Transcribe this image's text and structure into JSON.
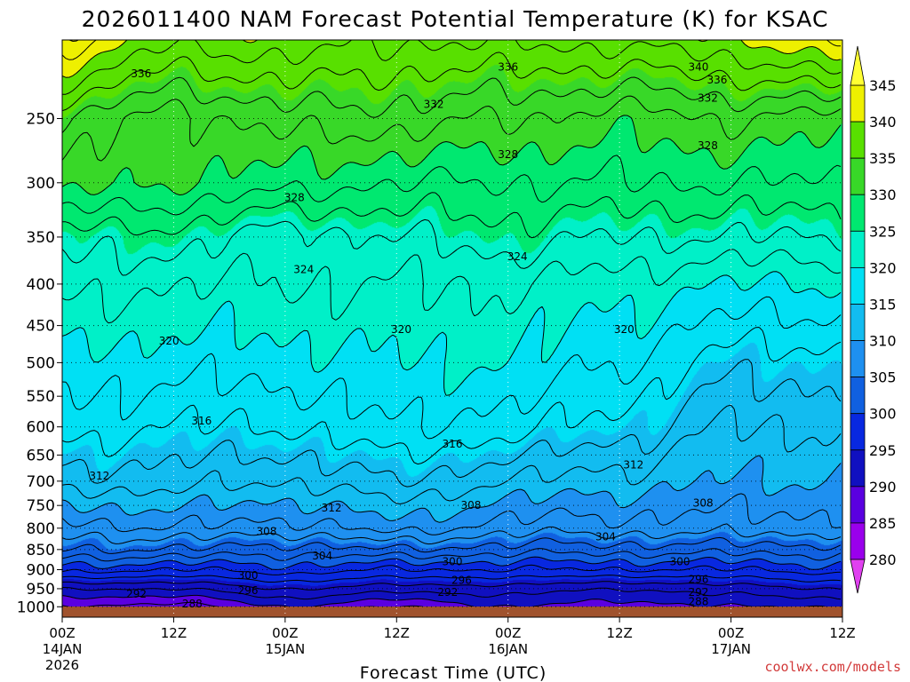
{
  "colors": {
    "levels": [
      {
        "min": 340,
        "color": "#eef000"
      },
      {
        "min": 335,
        "color": "#58e000"
      },
      {
        "min": 330,
        "color": "#38d828"
      },
      {
        "min": 325,
        "color": "#00e870"
      },
      {
        "min": 320,
        "color": "#00f0c8"
      },
      {
        "min": 315,
        "color": "#00e0f4"
      },
      {
        "min": 310,
        "color": "#12bcf0"
      },
      {
        "min": 305,
        "color": "#1e90f0"
      },
      {
        "min": 300,
        "color": "#1060e0"
      },
      {
        "min": 295,
        "color": "#0828e0"
      },
      {
        "min": 290,
        "color": "#1010c0"
      },
      {
        "min": 285,
        "color": "#5a00e0"
      },
      {
        "min": 280,
        "color": "#9a00ec"
      }
    ],
    "ground": "#a0522d",
    "contour": "#000000",
    "credit": "#d23a3a"
  },
  "chart_data": {
    "type": "heatmap",
    "title": "2026011400 NAM Forecast Potential Temperature (K) for KSAC",
    "xlabel": "Forecast Time (UTC)",
    "ylabel": "",
    "x_range_hours": [
      0,
      84
    ],
    "x_ticks": [
      {
        "hour": 0,
        "label": "00Z",
        "sub": "14JAN",
        "sub2": "2026"
      },
      {
        "hour": 12,
        "label": "12Z",
        "sub": "",
        "sub2": ""
      },
      {
        "hour": 24,
        "label": "00Z",
        "sub": "15JAN",
        "sub2": ""
      },
      {
        "hour": 36,
        "label": "12Z",
        "sub": "",
        "sub2": ""
      },
      {
        "hour": 48,
        "label": "00Z",
        "sub": "16JAN",
        "sub2": ""
      },
      {
        "hour": 60,
        "label": "12Z",
        "sub": "",
        "sub2": ""
      },
      {
        "hour": 72,
        "label": "00Z",
        "sub": "17JAN",
        "sub2": ""
      },
      {
        "hour": 84,
        "label": "12Z",
        "sub": "",
        "sub2": ""
      }
    ],
    "y_axis": "pressure (hPa), log scale, decreasing upward",
    "y_range_hpa": [
      1030,
      200
    ],
    "y_ticks": [
      250,
      300,
      350,
      400,
      450,
      500,
      550,
      600,
      650,
      700,
      750,
      800,
      850,
      900,
      950,
      1000
    ],
    "colorbar_ticks": [
      345,
      340,
      335,
      330,
      325,
      320,
      315,
      310,
      305,
      300,
      295,
      290,
      285,
      280
    ],
    "contour_interval_K": 2,
    "profile_times_hours": [
      0,
      12,
      24,
      36,
      48,
      60,
      72,
      84
    ],
    "profile_columns": [
      [
        [
          1000,
          288
        ],
        [
          950,
          292
        ],
        [
          900,
          299
        ],
        [
          850,
          304
        ],
        [
          800,
          307
        ],
        [
          700,
          313
        ],
        [
          600,
          317
        ],
        [
          500,
          319
        ],
        [
          400,
          323
        ],
        [
          350,
          325
        ],
        [
          300,
          331
        ],
        [
          250,
          334
        ],
        [
          210,
          341
        ]
      ],
      [
        [
          1000,
          287
        ],
        [
          950,
          292
        ],
        [
          900,
          298
        ],
        [
          850,
          304
        ],
        [
          800,
          308
        ],
        [
          700,
          313
        ],
        [
          600,
          316
        ],
        [
          500,
          319
        ],
        [
          400,
          322
        ],
        [
          350,
          325
        ],
        [
          300,
          330
        ],
        [
          250,
          331
        ],
        [
          210,
          337
        ]
      ],
      [
        [
          1000,
          290
        ],
        [
          950,
          294
        ],
        [
          900,
          299
        ],
        [
          850,
          303
        ],
        [
          800,
          307
        ],
        [
          700,
          312
        ],
        [
          600,
          316
        ],
        [
          500,
          319
        ],
        [
          400,
          322
        ],
        [
          350,
          323
        ],
        [
          300,
          329
        ],
        [
          250,
          333
        ],
        [
          210,
          338
        ]
      ],
      [
        [
          1000,
          288
        ],
        [
          950,
          293
        ],
        [
          900,
          298
        ],
        [
          850,
          304
        ],
        [
          800,
          309
        ],
        [
          700,
          314
        ],
        [
          600,
          318
        ],
        [
          500,
          320
        ],
        [
          400,
          322
        ],
        [
          350,
          324
        ],
        [
          300,
          328
        ],
        [
          250,
          333
        ],
        [
          210,
          337
        ]
      ],
      [
        [
          1000,
          290
        ],
        [
          950,
          293
        ],
        [
          900,
          298
        ],
        [
          850,
          303
        ],
        [
          800,
          307
        ],
        [
          700,
          312
        ],
        [
          600,
          317
        ],
        [
          500,
          320
        ],
        [
          400,
          322
        ],
        [
          350,
          325
        ],
        [
          300,
          328
        ],
        [
          250,
          332
        ],
        [
          210,
          337
        ]
      ],
      [
        [
          1000,
          289
        ],
        [
          950,
          292
        ],
        [
          900,
          298
        ],
        [
          850,
          303
        ],
        [
          800,
          307
        ],
        [
          700,
          311
        ],
        [
          600,
          315
        ],
        [
          500,
          318
        ],
        [
          400,
          321
        ],
        [
          350,
          324
        ],
        [
          300,
          328
        ],
        [
          250,
          331
        ],
        [
          210,
          337
        ]
      ],
      [
        [
          1000,
          290
        ],
        [
          950,
          293
        ],
        [
          900,
          298
        ],
        [
          850,
          303
        ],
        [
          800,
          307
        ],
        [
          700,
          310
        ],
        [
          600,
          312
        ],
        [
          500,
          315
        ],
        [
          400,
          320
        ],
        [
          350,
          324
        ],
        [
          300,
          328
        ],
        [
          250,
          332
        ],
        [
          210,
          338
        ]
      ],
      [
        [
          1000,
          290
        ],
        [
          950,
          294
        ],
        [
          900,
          299
        ],
        [
          850,
          303
        ],
        [
          800,
          307
        ],
        [
          700,
          310
        ],
        [
          600,
          312
        ],
        [
          500,
          315
        ],
        [
          400,
          320
        ],
        [
          350,
          324
        ],
        [
          300,
          328
        ],
        [
          250,
          331
        ],
        [
          210,
          340
        ]
      ]
    ],
    "contour_labels": [
      {
        "text": "336",
        "hour": 8.5,
        "p": 220
      },
      {
        "text": "336",
        "hour": 48,
        "p": 216
      },
      {
        "text": "340",
        "hour": 68.5,
        "p": 216
      },
      {
        "text": "336",
        "hour": 70.5,
        "p": 224
      },
      {
        "text": "332",
        "hour": 40,
        "p": 240
      },
      {
        "text": "332",
        "hour": 69.5,
        "p": 236
      },
      {
        "text": "328",
        "hour": 48,
        "p": 277
      },
      {
        "text": "328",
        "hour": 69.5,
        "p": 270
      },
      {
        "text": "328",
        "hour": 25,
        "p": 313
      },
      {
        "text": "324",
        "hour": 49,
        "p": 370
      },
      {
        "text": "324",
        "hour": 26,
        "p": 384
      },
      {
        "text": "320",
        "hour": 11.5,
        "p": 470
      },
      {
        "text": "320",
        "hour": 36.5,
        "p": 455
      },
      {
        "text": "320",
        "hour": 60.5,
        "p": 455
      },
      {
        "text": "316",
        "hour": 15,
        "p": 590
      },
      {
        "text": "316",
        "hour": 42,
        "p": 630
      },
      {
        "text": "312",
        "hour": 4,
        "p": 690
      },
      {
        "text": "312",
        "hour": 61.5,
        "p": 668
      },
      {
        "text": "312",
        "hour": 29,
        "p": 755
      },
      {
        "text": "308",
        "hour": 22,
        "p": 808
      },
      {
        "text": "308",
        "hour": 44,
        "p": 750
      },
      {
        "text": "308",
        "hour": 69,
        "p": 745
      },
      {
        "text": "304",
        "hour": 28,
        "p": 865
      },
      {
        "text": "304",
        "hour": 58.5,
        "p": 820
      },
      {
        "text": "300",
        "hour": 20,
        "p": 915
      },
      {
        "text": "300",
        "hour": 42,
        "p": 880
      },
      {
        "text": "300",
        "hour": 66.5,
        "p": 880
      },
      {
        "text": "296",
        "hour": 20,
        "p": 955
      },
      {
        "text": "296",
        "hour": 43,
        "p": 928
      },
      {
        "text": "296",
        "hour": 68.5,
        "p": 925
      },
      {
        "text": "292",
        "hour": 8,
        "p": 965
      },
      {
        "text": "292",
        "hour": 41.5,
        "p": 960
      },
      {
        "text": "292",
        "hour": 68.5,
        "p": 960
      },
      {
        "text": "288",
        "hour": 14,
        "p": 992
      },
      {
        "text": "288",
        "hour": 68.5,
        "p": 985
      }
    ],
    "colorbar_label": ""
  },
  "credit": "coolwx.com/models"
}
